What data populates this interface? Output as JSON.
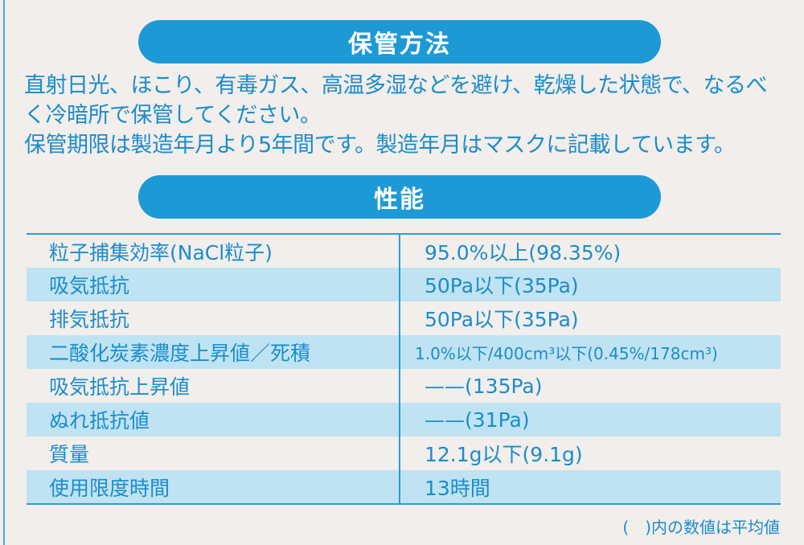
{
  "storage": {
    "title": "保管方法",
    "lines": [
      "直射日光、ほこり、有毒ガス、高温多湿などを避け、乾燥した状態で、なるべ",
      "く冷暗所で保管してください。",
      "保管期限は製造年月より5年間です。製造年月はマスクに記載しています。"
    ]
  },
  "performance": {
    "title": "性能",
    "rows": [
      {
        "label": "粒子捕集効率(NaCl粒子)",
        "value": "95.0%以上(98.35%)"
      },
      {
        "label": "吸気抵抗",
        "value": "50Pa以下(35Pa)"
      },
      {
        "label": "排気抵抗",
        "value": "50Pa以下(35Pa)"
      },
      {
        "label": "二酸化炭素濃度上昇値／死積",
        "value": "1.0%以下/400cm³以下(0.45%/178cm³)"
      },
      {
        "label": "吸気抵抗上昇値",
        "value": "——(135Pa)"
      },
      {
        "label": "ぬれ抵抗値",
        "value": "——(31Pa)"
      },
      {
        "label": "質量",
        "value": "12.1g以下(9.1g)"
      },
      {
        "label": "使用限度時間",
        "value": "13時間"
      }
    ]
  },
  "note": "(　)内の数値は平均値",
  "colors": {
    "accent": "#1d9ad6",
    "stripe": "#bfe3f2",
    "background": "#f2eeeb"
  }
}
